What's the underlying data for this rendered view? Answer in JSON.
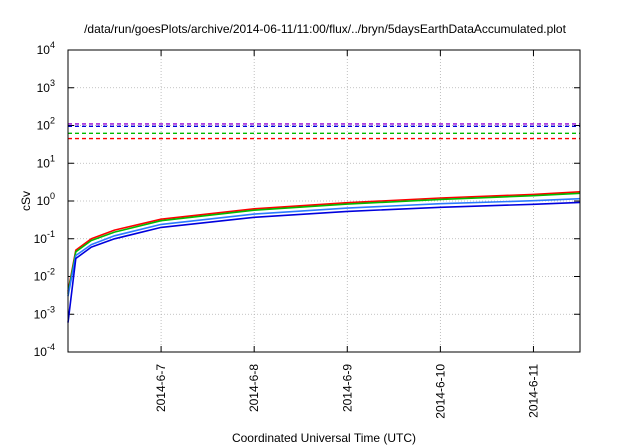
{
  "chart_data": {
    "type": "line",
    "title": "/data/run/goesPlots/archive/2014-06-11/11:00/flux/../bryn/5daysEarthDataAccumulated.plot",
    "xlabel": "Coordinated Universal Time (UTC)",
    "ylabel": "cSv",
    "x_scale": "date",
    "y_scale": "log",
    "xlim": [
      "2014-06-06T00:00",
      "2014-06-11T12:00"
    ],
    "ylim": [
      0.0001,
      10000
    ],
    "x_ticks": [
      "2014-6-7",
      "2014-6-8",
      "2014-6-9",
      "2014-6-10",
      "2014-6-11"
    ],
    "y_ticks": [
      {
        "base": "10",
        "exp": "-4"
      },
      {
        "base": "10",
        "exp": "-3"
      },
      {
        "base": "10",
        "exp": "-2"
      },
      {
        "base": "10",
        "exp": "-1"
      },
      {
        "base": "10",
        "exp": "0"
      },
      {
        "base": "10",
        "exp": "1"
      },
      {
        "base": "10",
        "exp": "2"
      },
      {
        "base": "10",
        "exp": "3"
      },
      {
        "base": "10",
        "exp": "4"
      }
    ],
    "grid": true,
    "series": [
      {
        "color": "#ff0000",
        "style": "solid",
        "x": [
          "2014-06-06T00:00",
          "2014-06-06T02:00",
          "2014-06-06T06:00",
          "2014-06-06T12:00",
          "2014-06-07T00:00",
          "2014-06-08T00:00",
          "2014-06-09T00:00",
          "2014-06-10T00:00",
          "2014-06-11T00:00",
          "2014-06-11T12:00"
        ],
        "y": [
          0.004,
          0.05,
          0.1,
          0.17,
          0.33,
          0.62,
          0.9,
          1.2,
          1.5,
          1.75
        ]
      },
      {
        "color": "#00bb00",
        "style": "solid",
        "x": [
          "2014-06-06T00:00",
          "2014-06-06T02:00",
          "2014-06-06T06:00",
          "2014-06-06T12:00",
          "2014-06-07T00:00",
          "2014-06-08T00:00",
          "2014-06-09T00:00",
          "2014-06-10T00:00",
          "2014-06-11T00:00",
          "2014-06-11T12:00"
        ],
        "y": [
          0.0035,
          0.045,
          0.09,
          0.15,
          0.3,
          0.57,
          0.83,
          1.1,
          1.38,
          1.6
        ]
      },
      {
        "color": "#2b7bff",
        "style": "solid",
        "x": [
          "2014-06-06T00:00",
          "2014-06-06T02:00",
          "2014-06-06T06:00",
          "2014-06-06T12:00",
          "2014-06-07T00:00",
          "2014-06-08T00:00",
          "2014-06-09T00:00",
          "2014-06-10T00:00",
          "2014-06-11T00:00",
          "2014-06-11T12:00"
        ],
        "y": [
          0.003,
          0.036,
          0.07,
          0.12,
          0.24,
          0.45,
          0.65,
          0.85,
          1.02,
          1.15
        ]
      },
      {
        "color": "#0000dd",
        "style": "solid",
        "x": [
          "2014-06-06T00:00",
          "2014-06-06T02:00",
          "2014-06-06T06:00",
          "2014-06-06T12:00",
          "2014-06-07T00:00",
          "2014-06-08T00:00",
          "2014-06-09T00:00",
          "2014-06-10T00:00",
          "2014-06-11T00:00",
          "2014-06-11T12:00"
        ],
        "y": [
          0.0006,
          0.03,
          0.06,
          0.1,
          0.2,
          0.37,
          0.53,
          0.68,
          0.82,
          0.92
        ]
      },
      {
        "color": "#ff0000",
        "style": "dashed",
        "x": [
          "2014-06-06T00:00",
          "2014-06-11T12:00"
        ],
        "y": [
          45,
          45
        ]
      },
      {
        "color": "#00bb00",
        "style": "dashed",
        "x": [
          "2014-06-06T00:00",
          "2014-06-11T12:00"
        ],
        "y": [
          62,
          62
        ]
      },
      {
        "color": "#0000dd",
        "style": "dashed",
        "x": [
          "2014-06-06T00:00",
          "2014-06-11T12:00"
        ],
        "y": [
          95,
          95
        ]
      },
      {
        "color": "#9400d3",
        "style": "dashed",
        "x": [
          "2014-06-06T00:00",
          "2014-06-11T12:00"
        ],
        "y": [
          110,
          110
        ]
      }
    ]
  }
}
